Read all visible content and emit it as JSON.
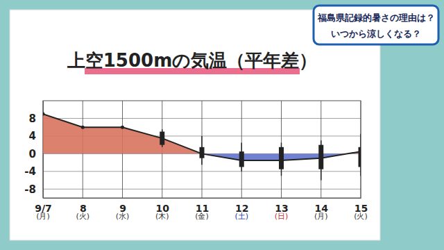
{
  "chart_data": {
    "type": "line",
    "title": "上空1500mの気温（平年差）",
    "banner": [
      "福島県記録的暑さの理由は？",
      "いつから涼しくなる？"
    ],
    "categories": [
      "9/7",
      "8",
      "9",
      "10",
      "11",
      "12",
      "13",
      "14",
      "15"
    ],
    "weekdays": [
      "(月)",
      "(火)",
      "(水)",
      "(木)",
      "(金)",
      "(土)",
      "(日)",
      "(月)",
      "(火)"
    ],
    "weekday_colors": [
      "#333333",
      "#333333",
      "#333333",
      "#333333",
      "#333333",
      "#2a3a9a",
      "#c0303a",
      "#333333",
      "#333333"
    ],
    "values": [
      9,
      6,
      6,
      3.5,
      0,
      -1.5,
      -1.5,
      -1,
      0.5
    ],
    "spread": {
      "low": [
        null,
        null,
        null,
        1.5,
        -2.5,
        -4,
        -5,
        -6,
        -5
      ],
      "q1": [
        null,
        null,
        null,
        2,
        -1,
        -3,
        -3.5,
        -3.5,
        -3
      ],
      "q3": [
        null,
        null,
        null,
        5,
        1.5,
        0.5,
        1.5,
        2,
        1.5
      ],
      "high": [
        null,
        null,
        null,
        5.5,
        4,
        2.5,
        2.5,
        3,
        4.5
      ]
    },
    "color": "#222222",
    "area_colors": [
      "#d9735f",
      "#5f73cc"
    ],
    "ylim": [
      -10,
      12
    ],
    "yticks": [
      -8,
      -4,
      0,
      4,
      8
    ],
    "grid": true
  }
}
